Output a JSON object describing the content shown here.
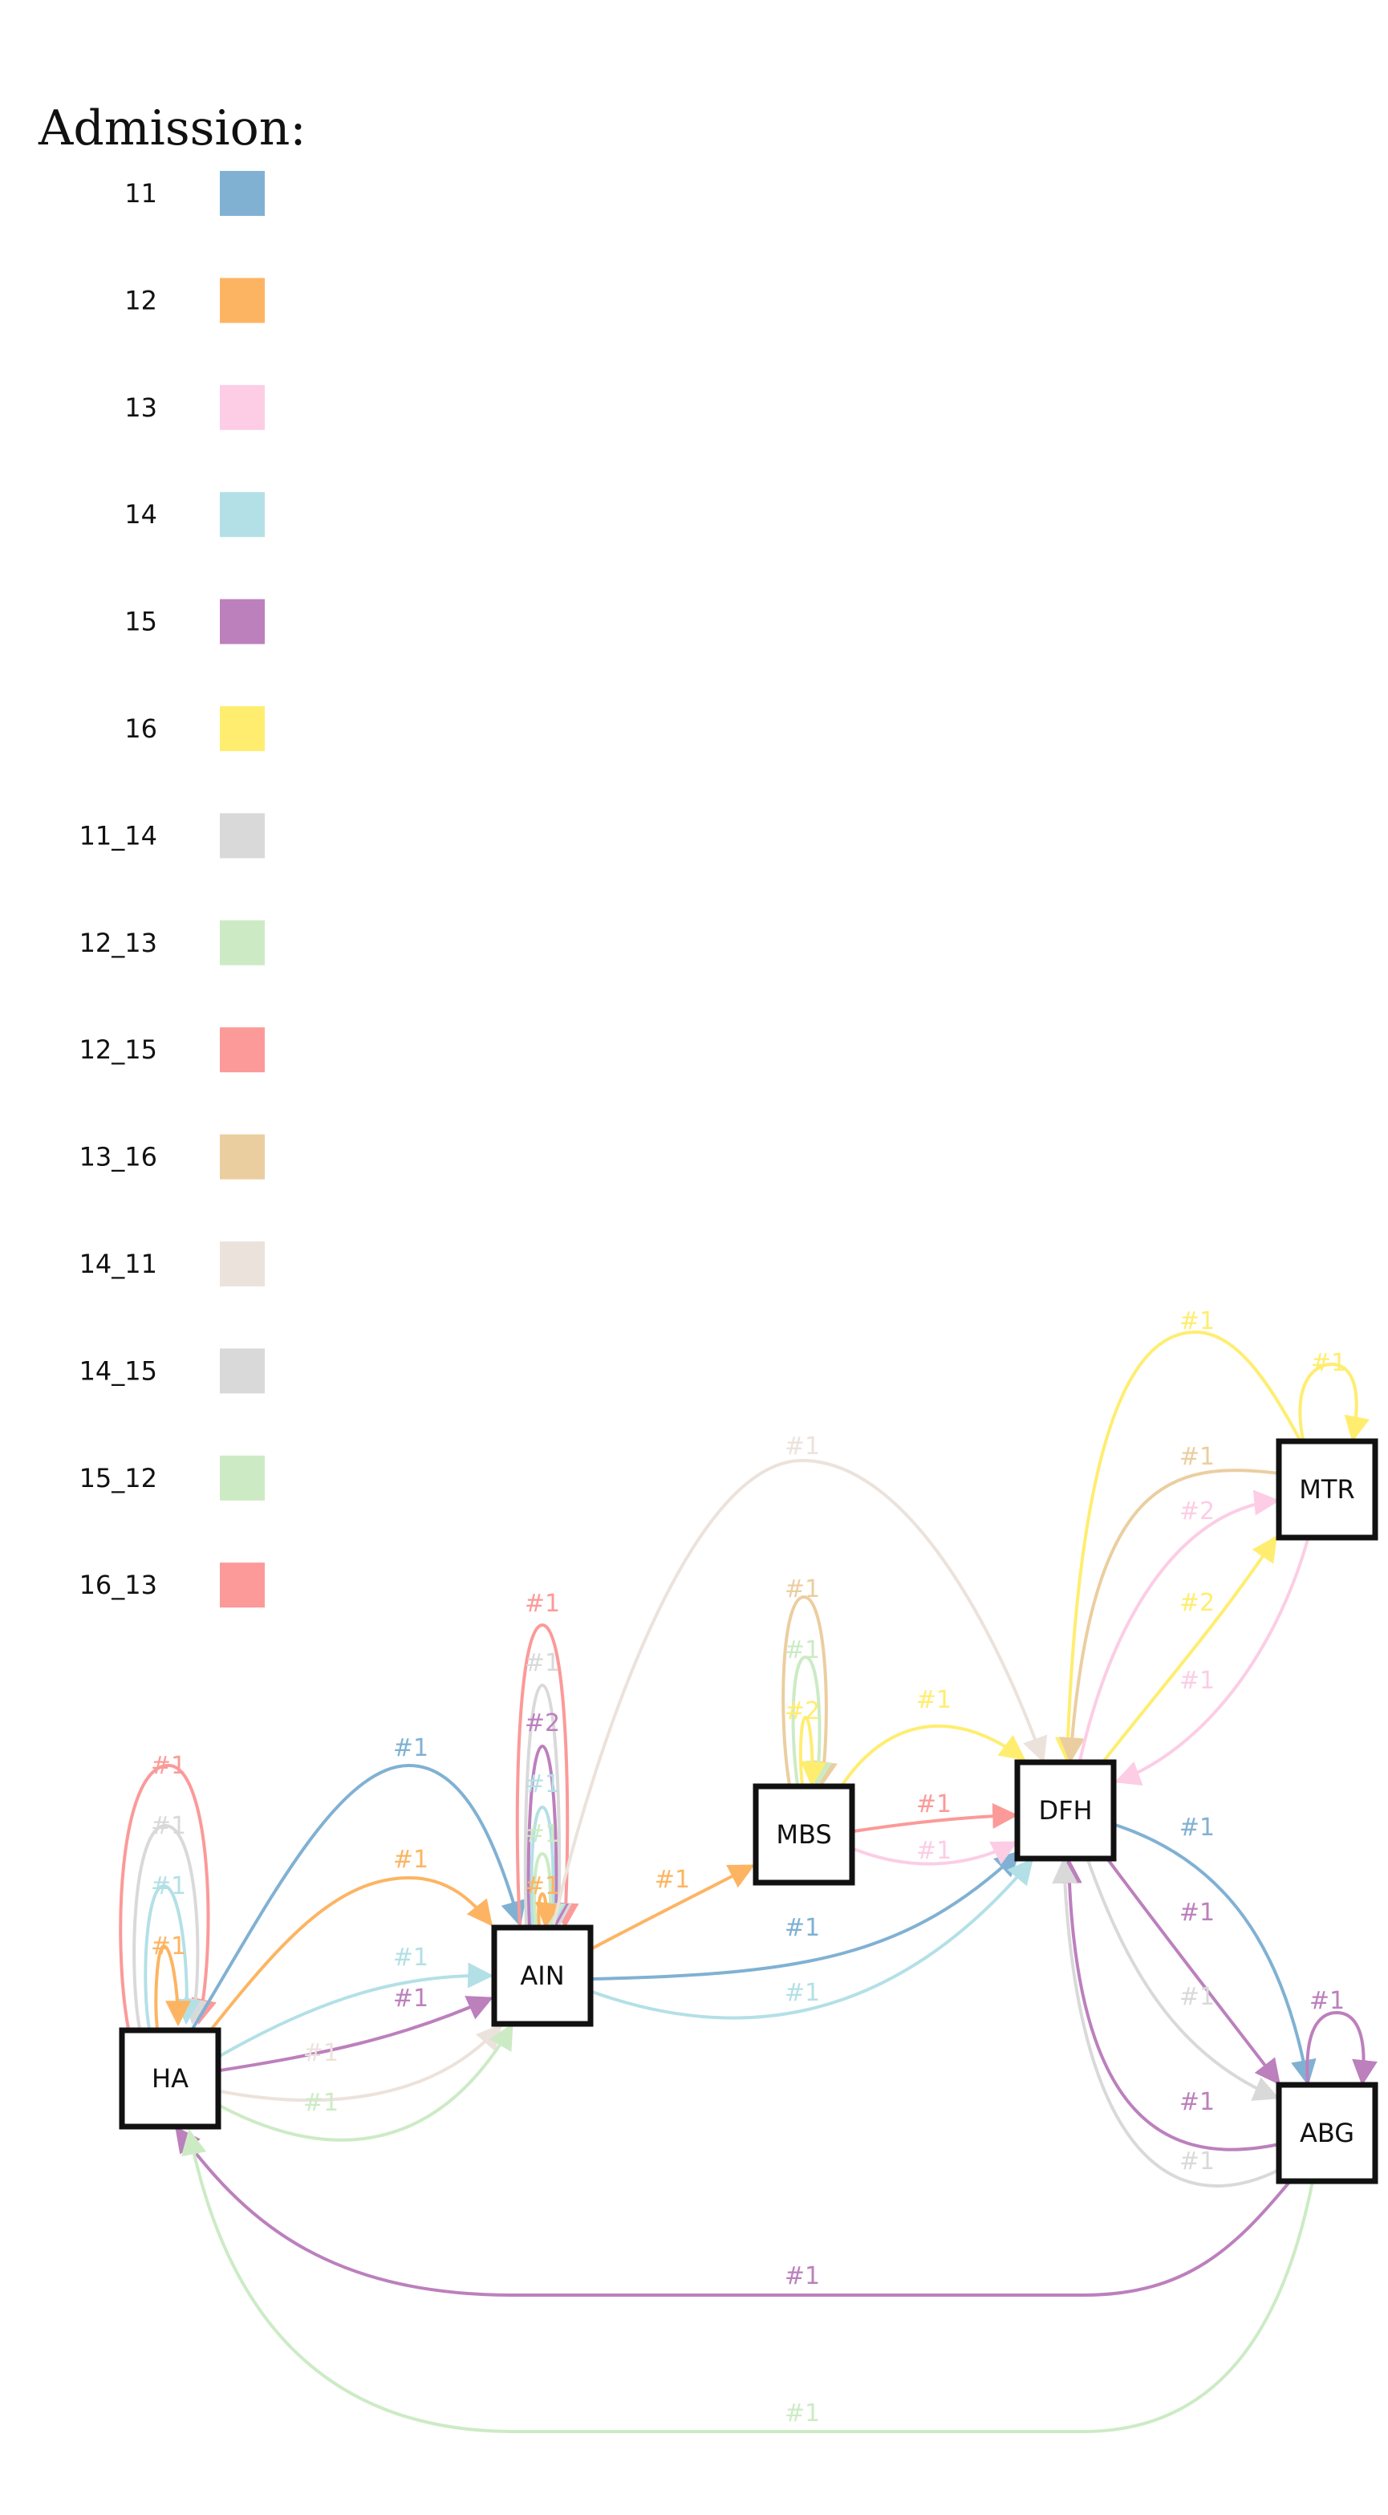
{
  "legend": {
    "title": "Admission:",
    "items": [
      {
        "label": "11",
        "color": "#80b1d3"
      },
      {
        "label": "12",
        "color": "#fdb462"
      },
      {
        "label": "13",
        "color": "#fccde5"
      },
      {
        "label": "14",
        "color": "#b3e0e6"
      },
      {
        "label": "15",
        "color": "#bc80bd"
      },
      {
        "label": "16",
        "color": "#ffed6f"
      },
      {
        "label": "11_14",
        "color": "#d9d9d9"
      },
      {
        "label": "12_13",
        "color": "#ccebc5"
      },
      {
        "label": "12_15",
        "color": "#fb9a99"
      },
      {
        "label": "13_16",
        "color": "#ebcea0"
      },
      {
        "label": "14_11",
        "color": "#ece2dc"
      },
      {
        "label": "14_15",
        "color": "#d9d9d9"
      },
      {
        "label": "15_12",
        "color": "#ccebc5"
      },
      {
        "label": "16_13",
        "color": "#fb9a99"
      }
    ]
  },
  "nodes": {
    "HA": "HA",
    "AIN": "AIN",
    "MBS": "MBS",
    "DFH": "DFH",
    "MTR": "MTR",
    "ABG": "ABG"
  },
  "edges": [
    {
      "from": "HA",
      "to": "HA",
      "label": "#1",
      "color": "#fb9a99"
    },
    {
      "from": "HA",
      "to": "HA",
      "label": "#1",
      "color": "#d9d9d9"
    },
    {
      "from": "HA",
      "to": "HA",
      "label": "#1",
      "color": "#b3e0e6"
    },
    {
      "from": "HA",
      "to": "HA",
      "label": "#1",
      "color": "#fdb462"
    },
    {
      "from": "HA",
      "to": "AIN",
      "label": "#1",
      "color": "#80b1d3"
    },
    {
      "from": "HA",
      "to": "AIN",
      "label": "#1",
      "color": "#fdb462"
    },
    {
      "from": "HA",
      "to": "AIN",
      "label": "#1",
      "color": "#b3e0e6"
    },
    {
      "from": "HA",
      "to": "AIN",
      "label": "#1",
      "color": "#bc80bd"
    },
    {
      "from": "HA",
      "to": "AIN",
      "label": "#1",
      "color": "#ece2dc"
    },
    {
      "from": "HA",
      "to": "AIN",
      "label": "#1",
      "color": "#ccebc5"
    },
    {
      "from": "AIN",
      "to": "AIN",
      "label": "#1",
      "color": "#fb9a99"
    },
    {
      "from": "AIN",
      "to": "AIN",
      "label": "#1",
      "color": "#d9d9d9"
    },
    {
      "from": "AIN",
      "to": "AIN",
      "label": "#2",
      "color": "#bc80bd"
    },
    {
      "from": "AIN",
      "to": "AIN",
      "label": "#1",
      "color": "#b3e0e6"
    },
    {
      "from": "AIN",
      "to": "AIN",
      "label": "#1",
      "color": "#ccebc5"
    },
    {
      "from": "AIN",
      "to": "AIN",
      "label": "#1",
      "color": "#fdb462"
    },
    {
      "from": "AIN",
      "to": "MBS",
      "label": "#1",
      "color": "#fdb462"
    },
    {
      "from": "AIN",
      "to": "DFH",
      "label": "#1",
      "color": "#80b1d3"
    },
    {
      "from": "AIN",
      "to": "DFH",
      "label": "#1",
      "color": "#b3e0e6"
    },
    {
      "from": "AIN",
      "to": "DFH",
      "label": "#1",
      "color": "#ece2dc"
    },
    {
      "from": "MBS",
      "to": "MBS",
      "label": "#1",
      "color": "#ebcea0"
    },
    {
      "from": "MBS",
      "to": "MBS",
      "label": "#1",
      "color": "#ccebc5"
    },
    {
      "from": "MBS",
      "to": "MBS",
      "label": "#2",
      "color": "#ffed6f"
    },
    {
      "from": "MBS",
      "to": "DFH",
      "label": "#1",
      "color": "#ffed6f"
    },
    {
      "from": "MBS",
      "to": "DFH",
      "label": "#1",
      "color": "#fb9a99"
    },
    {
      "from": "MBS",
      "to": "DFH",
      "label": "#1",
      "color": "#fccde5"
    },
    {
      "from": "MTR",
      "to": "MTR",
      "label": "#1",
      "color": "#ffed6f"
    },
    {
      "from": "MTR",
      "to": "DFH",
      "label": "#1",
      "color": "#ffed6f"
    },
    {
      "from": "MTR",
      "to": "DFH",
      "label": "#1",
      "color": "#ebcea0"
    },
    {
      "from": "DFH",
      "to": "MTR",
      "label": "#2",
      "color": "#fccde5"
    },
    {
      "from": "DFH",
      "to": "MTR",
      "label": "#2",
      "color": "#ffed6f"
    },
    {
      "from": "MTR",
      "to": "DFH",
      "label": "#1",
      "color": "#fccde5"
    },
    {
      "from": "DFH",
      "to": "ABG",
      "label": "#1",
      "color": "#80b1d3"
    },
    {
      "from": "DFH",
      "to": "ABG",
      "label": "#1",
      "color": "#bc80bd"
    },
    {
      "from": "DFH",
      "to": "ABG",
      "label": "#1",
      "color": "#d9d9d9"
    },
    {
      "from": "ABG",
      "to": "ABG",
      "label": "#1",
      "color": "#bc80bd"
    },
    {
      "from": "ABG",
      "to": "DFH",
      "label": "#1",
      "color": "#bc80bd"
    },
    {
      "from": "ABG",
      "to": "DFH",
      "label": "#1",
      "color": "#d9d9d9"
    },
    {
      "from": "ABG",
      "to": "HA",
      "label": "#1",
      "color": "#bc80bd"
    },
    {
      "from": "ABG",
      "to": "HA",
      "label": "#1",
      "color": "#ccebc5"
    }
  ]
}
